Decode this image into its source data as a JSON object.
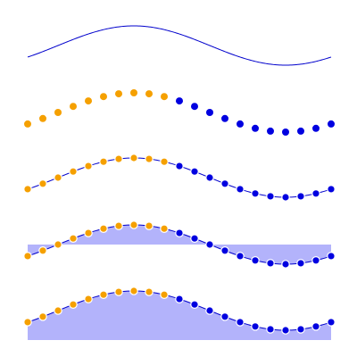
{
  "chart_data": {
    "type": "line",
    "x": [
      0,
      1,
      2,
      3,
      4,
      5,
      6,
      7,
      8,
      9,
      10,
      11,
      12,
      13,
      14,
      15,
      16,
      17,
      18,
      19,
      20
    ],
    "series_base": "sine",
    "colors": {
      "line": "#0000cc",
      "low_points": "#f5a000",
      "high_points": "#0000e0",
      "fill": "#b3b3fb",
      "point_outline": "#ffffff"
    },
    "panels": [
      {
        "style": "line"
      },
      {
        "style": "points"
      },
      {
        "style": "line-points"
      },
      {
        "style": "line-points-fill-to-zero"
      },
      {
        "style": "line-points-fill-to-bottom"
      }
    ]
  }
}
